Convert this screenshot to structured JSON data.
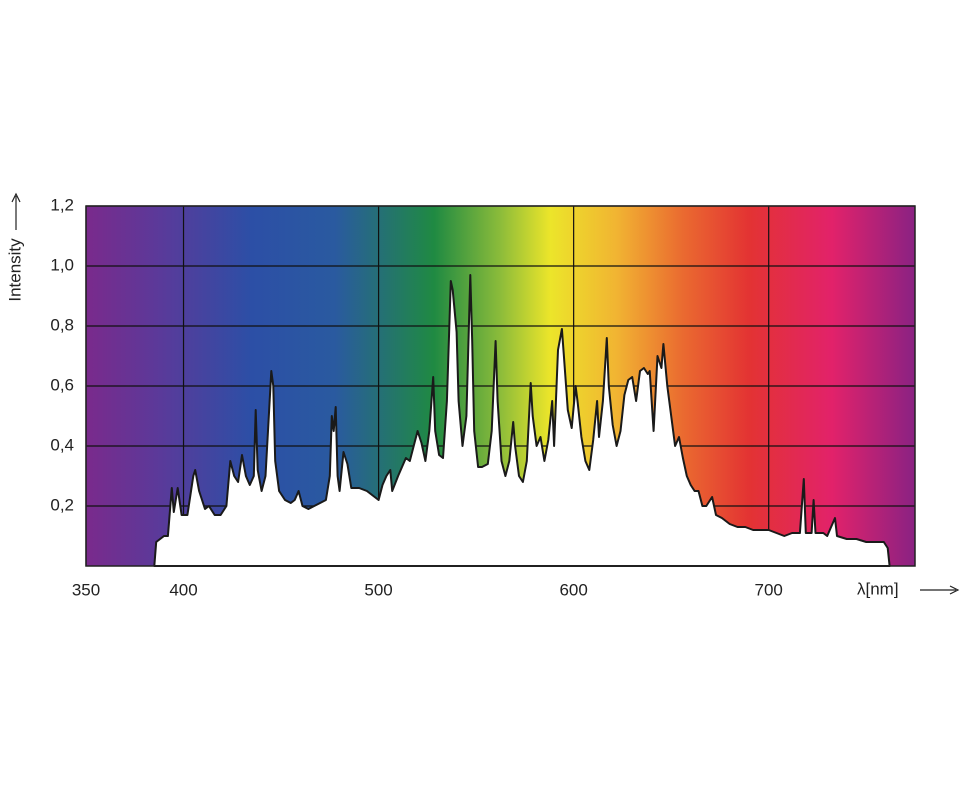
{
  "chart_data": {
    "type": "area",
    "ylabel": "Intensity",
    "xlabel": "λ[nm]",
    "x": [
      385,
      386,
      390,
      392,
      394,
      395,
      397,
      399,
      402,
      405,
      406,
      408,
      411,
      413,
      416,
      419,
      422,
      424,
      426,
      428,
      430,
      432,
      434,
      436,
      437,
      438,
      440,
      442,
      445,
      446,
      447,
      449,
      452,
      455,
      457,
      459,
      461,
      464,
      467,
      470,
      473,
      475,
      476,
      477,
      478,
      479,
      480,
      482,
      484,
      486,
      490,
      494,
      498,
      500,
      502,
      504,
      506,
      507,
      510,
      512,
      514,
      516,
      518,
      520,
      522,
      524,
      526,
      528,
      529,
      531,
      533,
      535,
      537,
      538,
      540,
      541,
      543,
      545,
      547,
      548,
      549,
      551,
      553,
      556,
      558,
      560,
      561,
      563,
      565,
      567,
      569,
      570,
      572,
      574,
      576,
      578,
      579,
      581,
      583,
      585,
      587,
      589,
      590,
      592,
      594,
      595,
      597,
      599,
      601,
      602,
      604,
      606,
      608,
      610,
      612,
      613,
      615,
      617,
      618,
      620,
      622,
      624,
      626,
      628,
      630,
      632,
      634,
      636,
      638,
      639,
      641,
      643,
      645,
      646,
      648,
      650,
      652,
      654,
      656,
      658,
      660,
      662,
      664,
      666,
      668,
      671,
      673,
      676,
      680,
      684,
      688,
      692,
      696,
      700,
      704,
      708,
      712,
      716,
      718,
      719,
      722,
      723,
      724,
      728,
      730,
      734,
      735,
      740,
      745,
      750,
      755,
      759,
      761,
      762
    ],
    "values": [
      0,
      0.08,
      0.1,
      0.1,
      0.26,
      0.18,
      0.26,
      0.17,
      0.17,
      0.3,
      0.32,
      0.25,
      0.19,
      0.2,
      0.17,
      0.17,
      0.2,
      0.35,
      0.3,
      0.28,
      0.37,
      0.3,
      0.27,
      0.3,
      0.52,
      0.32,
      0.25,
      0.3,
      0.65,
      0.6,
      0.35,
      0.25,
      0.22,
      0.21,
      0.22,
      0.25,
      0.2,
      0.19,
      0.2,
      0.21,
      0.22,
      0.3,
      0.5,
      0.45,
      0.53,
      0.3,
      0.25,
      0.38,
      0.34,
      0.26,
      0.26,
      0.25,
      0.23,
      0.22,
      0.27,
      0.3,
      0.32,
      0.25,
      0.3,
      0.33,
      0.36,
      0.35,
      0.4,
      0.45,
      0.41,
      0.35,
      0.45,
      0.63,
      0.45,
      0.37,
      0.36,
      0.55,
      0.95,
      0.92,
      0.78,
      0.55,
      0.4,
      0.5,
      0.97,
      0.75,
      0.45,
      0.33,
      0.33,
      0.34,
      0.45,
      0.75,
      0.55,
      0.35,
      0.3,
      0.35,
      0.48,
      0.4,
      0.3,
      0.28,
      0.35,
      0.61,
      0.5,
      0.4,
      0.43,
      0.35,
      0.42,
      0.55,
      0.4,
      0.72,
      0.79,
      0.7,
      0.52,
      0.46,
      0.6,
      0.55,
      0.43,
      0.35,
      0.32,
      0.42,
      0.55,
      0.43,
      0.55,
      0.76,
      0.6,
      0.47,
      0.4,
      0.45,
      0.57,
      0.62,
      0.63,
      0.55,
      0.65,
      0.66,
      0.64,
      0.65,
      0.45,
      0.7,
      0.66,
      0.74,
      0.6,
      0.5,
      0.4,
      0.43,
      0.36,
      0.3,
      0.27,
      0.25,
      0.25,
      0.2,
      0.2,
      0.23,
      0.17,
      0.16,
      0.14,
      0.13,
      0.13,
      0.12,
      0.12,
      0.12,
      0.11,
      0.1,
      0.11,
      0.11,
      0.29,
      0.11,
      0.11,
      0.22,
      0.11,
      0.11,
      0.1,
      0.16,
      0.1,
      0.09,
      0.09,
      0.08,
      0.08,
      0.08,
      0.06,
      0
    ],
    "color": "#1a1a1a",
    "xlim": [
      350,
      775
    ],
    "xticks": [
      350,
      400,
      500,
      600,
      700
    ],
    "ylim": [
      0,
      1.2
    ],
    "yticks": [
      {
        "value": 0.2,
        "label": "0,2"
      },
      {
        "value": 0.4,
        "label": "0,4"
      },
      {
        "value": 0.6,
        "label": "0,6"
      },
      {
        "value": 0.8,
        "label": "0,8"
      },
      {
        "value": 1.0,
        "label": "1,0"
      },
      {
        "value": 1.2,
        "label": "1,2"
      }
    ],
    "grid": true
  }
}
